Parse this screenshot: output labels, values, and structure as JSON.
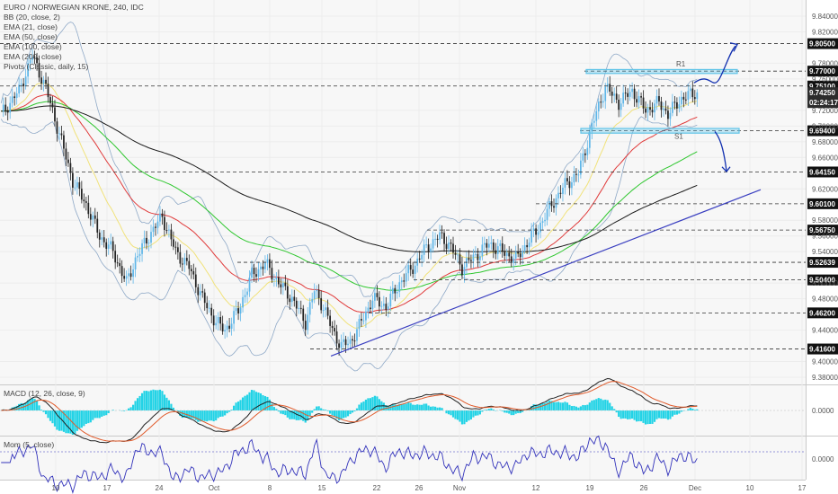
{
  "chart_data": {
    "type": "candlestick",
    "title": "EURO / NORWEGIAN KRONE, 240, IDC",
    "indicators": [
      "BB (20, close, 2)",
      "EMA (21, close)",
      "EMA (50, close)",
      "EMA (100, close)",
      "EMA (200, close)",
      "Pivots (Classic, daily, 15)"
    ],
    "x_ticks": [
      "10",
      "17",
      "24",
      "Oct",
      "8",
      "15",
      "22",
      "26",
      "Nov",
      "12",
      "19",
      "26",
      "Dec",
      "10",
      "17"
    ],
    "y_ticks": [
      "9.84000",
      "9.82000",
      "9.78000",
      "9.76000",
      "9.72000",
      "9.70000",
      "9.68000",
      "9.66000",
      "9.62000",
      "9.58000",
      "9.56000",
      "9.54000",
      "9.50000",
      "9.48000",
      "9.44000",
      "9.40000",
      "9.38000"
    ],
    "ylim": [
      9.372,
      9.848
    ],
    "levels": [
      {
        "label": "9.80500",
        "value": 9.805
      },
      {
        "label": "9.77000",
        "value": 9.77
      },
      {
        "label": "9.75100",
        "value": 9.751
      },
      {
        "label": "9.69400",
        "value": 9.694
      },
      {
        "label": "9.64150",
        "value": 9.6415
      },
      {
        "label": "9.60100",
        "value": 9.601
      },
      {
        "label": "9.56750",
        "value": 9.5675
      },
      {
        "label": "9.52639",
        "value": 9.52639
      },
      {
        "label": "9.50400",
        "value": 9.504
      },
      {
        "label": "9.46200",
        "value": 9.462
      },
      {
        "label": "9.41600",
        "value": 9.416
      }
    ],
    "current_price": {
      "label": "9.74250",
      "value": 9.7425,
      "timer": "02:24:17"
    },
    "zones": [
      {
        "name": "resistance",
        "from": 9.767,
        "to": 9.772
      },
      {
        "name": "support",
        "from": 9.691,
        "to": 9.697
      }
    ],
    "pivot_labels": [
      "R1",
      "S1"
    ],
    "close_path": [
      [
        0,
        9.715
      ],
      [
        8,
        9.745
      ],
      [
        14,
        9.79
      ],
      [
        20,
        9.748
      ],
      [
        26,
        9.69
      ],
      [
        32,
        9.63
      ],
      [
        38,
        9.6
      ],
      [
        44,
        9.56
      ],
      [
        50,
        9.54
      ],
      [
        56,
        9.5
      ],
      [
        60,
        9.53
      ],
      [
        66,
        9.56
      ],
      [
        72,
        9.585
      ],
      [
        78,
        9.54
      ],
      [
        84,
        9.52
      ],
      [
        90,
        9.48
      ],
      [
        96,
        9.45
      ],
      [
        100,
        9.44
      ],
      [
        106,
        9.465
      ],
      [
        112,
        9.51
      ],
      [
        118,
        9.525
      ],
      [
        124,
        9.5
      ],
      [
        130,
        9.48
      ],
      [
        136,
        9.45
      ],
      [
        140,
        9.49
      ],
      [
        144,
        9.47
      ],
      [
        148,
        9.44
      ],
      [
        152,
        9.42
      ],
      [
        156,
        9.425
      ],
      [
        160,
        9.445
      ],
      [
        166,
        9.48
      ],
      [
        172,
        9.47
      ],
      [
        178,
        9.5
      ],
      [
        184,
        9.52
      ],
      [
        190,
        9.545
      ],
      [
        196,
        9.56
      ],
      [
        200,
        9.55
      ],
      [
        206,
        9.52
      ],
      [
        212,
        9.535
      ],
      [
        218,
        9.55
      ],
      [
        224,
        9.54
      ],
      [
        230,
        9.53
      ],
      [
        236,
        9.555
      ],
      [
        240,
        9.57
      ],
      [
        246,
        9.6
      ],
      [
        252,
        9.625
      ],
      [
        258,
        9.64
      ],
      [
        264,
        9.7
      ],
      [
        270,
        9.75
      ],
      [
        276,
        9.73
      ],
      [
        282,
        9.745
      ],
      [
        288,
        9.72
      ],
      [
        294,
        9.73
      ],
      [
        298,
        9.715
      ],
      [
        304,
        9.735
      ],
      [
        310,
        9.742
      ]
    ],
    "momentum_zero_label": "0.0000"
  },
  "panels": {
    "macd": {
      "title": "MACD (12, 26, close, 9)",
      "zero_label": "0.0000"
    },
    "mom": {
      "title": "Mom (5, close)",
      "zero_label": "0.0000"
    }
  },
  "colors": {
    "up_candle": "#5fb6e8",
    "down_candle": "#222222",
    "bb": "#8fa9c7",
    "ema21": "#f1e27a",
    "ema50": "#e03a3a",
    "ema100": "#2fc72f",
    "ema200": "#1a1a1a",
    "trendline": "#3a3fc0",
    "arrow": "#1230b0",
    "zone": "#5fc4e8",
    "macd_hist": "#22d3e6",
    "mom": "#3333bb"
  }
}
